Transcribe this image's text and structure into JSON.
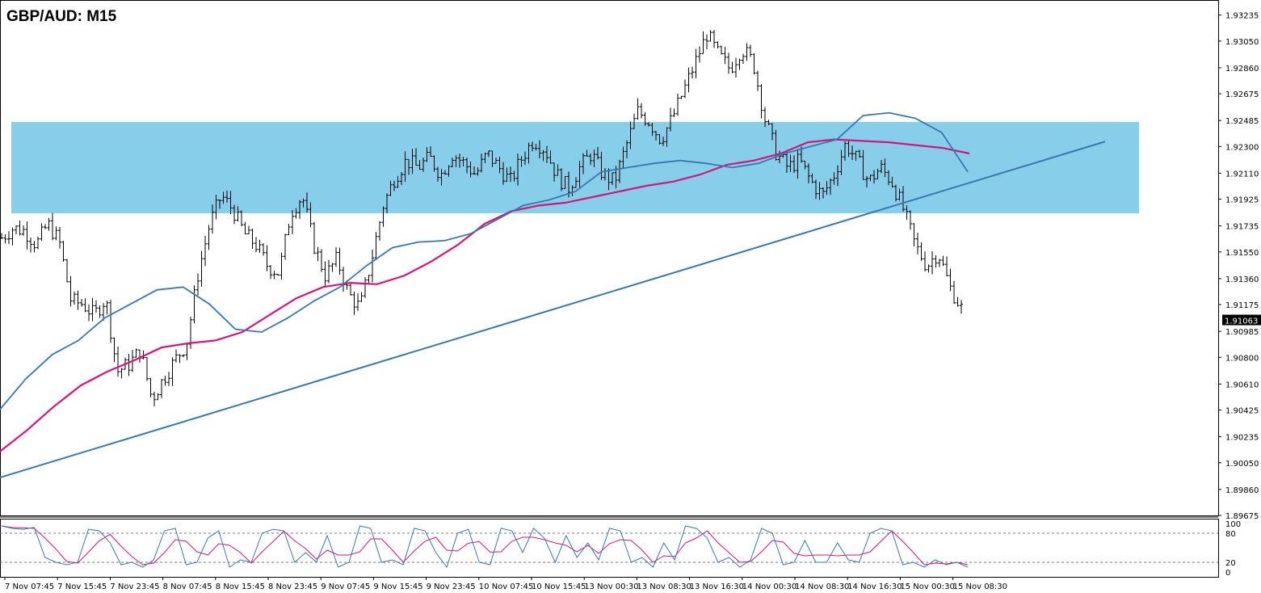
{
  "chart_data": {
    "type": "candlestick",
    "title": "GBP/AUD: M15",
    "timeframe": "M15",
    "symbol": "GBP/AUD",
    "current_price": "1.91063",
    "ylim": [
      1.89675,
      1.93325
    ],
    "price_ticks": [
      "1.93235",
      "1.93050",
      "1.92860",
      "1.92675",
      "1.92485",
      "1.92300",
      "1.92110",
      "1.91925",
      "1.91735",
      "1.91550",
      "1.91360",
      "1.91175",
      "1.90985",
      "1.90800",
      "1.90610",
      "1.90425",
      "1.90235",
      "1.90050",
      "1.89860",
      "1.89675"
    ],
    "x_tick_labels": [
      "7 Nov 07:45",
      "7 Nov 15:45",
      "7 Nov 23:45",
      "8 Nov 07:45",
      "8 Nov 15:45",
      "8 Nov 23:45",
      "9 Nov 07:45",
      "9 Nov 15:45",
      "9 Nov 23:45",
      "10 Nov 07:45",
      "10 Nov 15:45",
      "13 Nov 00:30",
      "13 Nov 08:30",
      "13 Nov 16:30",
      "14 Nov 00:30",
      "14 Nov 08:30",
      "14 Nov 16:30",
      "15 Nov 00:30",
      "15 Nov 08:30"
    ],
    "resistance_zone": {
      "from": 1.91825,
      "to": 1.92475,
      "color": "#87ceeb"
    },
    "trendline": {
      "start": 1.89945,
      "end": 1.92335,
      "color": "#3a77b0"
    },
    "ma_fast": {
      "color": "#3a77b0",
      "values": [
        1.9043,
        1.9065,
        1.9082,
        1.9092,
        1.9108,
        1.9118,
        1.9128,
        1.913,
        1.9118,
        1.91,
        1.9098,
        1.9108,
        1.912,
        1.913,
        1.9145,
        1.9158,
        1.9162,
        1.9163,
        1.9168,
        1.9178,
        1.9188,
        1.9192,
        1.9198,
        1.9212,
        1.9215,
        1.9218,
        1.922,
        1.9218,
        1.9215,
        1.9218,
        1.9225,
        1.923,
        1.9235,
        1.9252,
        1.9254,
        1.925,
        1.924,
        1.9212
      ]
    },
    "ma_slow": {
      "color": "#d6147a",
      "values": [
        1.9013,
        1.9028,
        1.9045,
        1.906,
        1.907,
        1.9078,
        1.9087,
        1.909,
        1.9092,
        1.9098,
        1.911,
        1.9122,
        1.913,
        1.9133,
        1.9132,
        1.9138,
        1.9148,
        1.916,
        1.9175,
        1.9184,
        1.9188,
        1.919,
        1.9194,
        1.9198,
        1.9202,
        1.9205,
        1.921,
        1.9217,
        1.922,
        1.9225,
        1.9233,
        1.9235,
        1.9234,
        1.9233,
        1.9231,
        1.9229,
        1.9225
      ]
    },
    "price_path": [
      1.9165,
      1.9172,
      1.917,
      1.916,
      1.9175,
      1.9162,
      1.912,
      1.9118,
      1.911,
      1.9122,
      1.907,
      1.9075,
      1.9085,
      1.905,
      1.9065,
      1.9078,
      1.909,
      1.914,
      1.9175,
      1.9195,
      1.9185,
      1.9168,
      1.916,
      1.9145,
      1.914,
      1.9183,
      1.9195,
      1.916,
      1.9138,
      1.915,
      1.9125,
      1.9115,
      1.915,
      1.9188,
      1.9208,
      1.922,
      1.9215,
      1.9222,
      1.921,
      1.9225,
      1.9218,
      1.921,
      1.9225,
      1.9215,
      1.9205,
      1.9222,
      1.9235,
      1.9228,
      1.921,
      1.92,
      1.9215,
      1.9225,
      1.921,
      1.9205,
      1.923,
      1.9255,
      1.9248,
      1.9235,
      1.925,
      1.927,
      1.929,
      1.931,
      1.9295,
      1.9285,
      1.93,
      1.929,
      1.925,
      1.9225,
      1.9215,
      1.922,
      1.9205,
      1.9195,
      1.921,
      1.9232,
      1.922,
      1.9205,
      1.9215,
      1.9205,
      1.9185,
      1.916,
      1.9145,
      1.9155,
      1.913,
      1.9115
    ],
    "oscillator": {
      "levels": [
        "100",
        "80",
        "20",
        "0"
      ],
      "k_color": "#3a77b0",
      "d_color": "#d6147a",
      "k": [
        95,
        90,
        88,
        92,
        30,
        20,
        15,
        20,
        88,
        85,
        60,
        15,
        20,
        10,
        25,
        85,
        90,
        15,
        20,
        70,
        85,
        10,
        25,
        20,
        80,
        88,
        85,
        20,
        40,
        20,
        75,
        10,
        20,
        95,
        90,
        20,
        25,
        15,
        90,
        85,
        40,
        10,
        80,
        88,
        20,
        15,
        90,
        85,
        40,
        90,
        70,
        20,
        75,
        30,
        60,
        25,
        90,
        85,
        20,
        30,
        10,
        60,
        25,
        95,
        90,
        70,
        20,
        30,
        10,
        25,
        90,
        80,
        15,
        20,
        65,
        20,
        20,
        60,
        25,
        20,
        80,
        90,
        85,
        15,
        20,
        10,
        25,
        15,
        20,
        10
      ]
    }
  }
}
